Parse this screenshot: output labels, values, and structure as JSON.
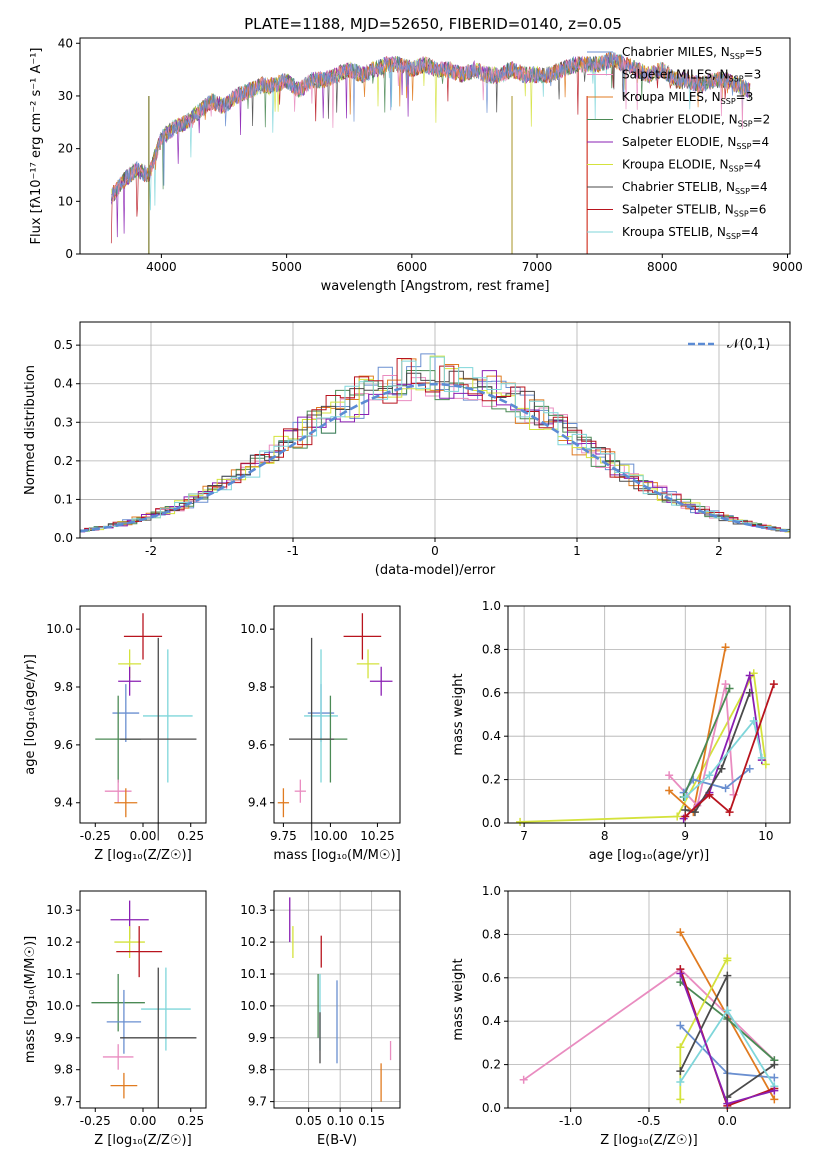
{
  "title": "PLATE=1188, MJD=52650, FIBERID=0140, z=0.05",
  "colors": {
    "Chabrier MILES": "#6a8fd0",
    "Salpeter MILES": "#e98cc0",
    "Kroupa MILES": "#e07b20",
    "Chabrier ELODIE": "#4b8a55",
    "Salpeter ELODIE": "#8a1fb3",
    "Kroupa ELODIE": "#d4e23c",
    "Chabrier STELIB": "#4a4a4a",
    "Salpeter STELIB": "#b8141e",
    "Kroupa STELIB": "#7fd6da"
  },
  "chart_data": [
    {
      "id": "spectrum",
      "type": "line",
      "xlabel": "wavelength [Angstrom, rest frame]",
      "ylabel": "Flux [fλ10⁻¹⁷ erg cm⁻² s⁻¹ A⁻¹]",
      "xlim": [
        3350,
        9020
      ],
      "ylim": [
        0,
        41
      ],
      "xticks": [
        4000,
        5000,
        6000,
        7000,
        8000,
        9000
      ],
      "yticks": [
        0,
        10,
        20,
        30,
        40
      ],
      "legend": "upper right",
      "grid": false,
      "x": [
        3600,
        3700,
        3800,
        3900,
        4000,
        4100,
        4200,
        4300,
        4400,
        4500,
        4600,
        4700,
        4800,
        4900,
        5000,
        5100,
        5200,
        5300,
        5400,
        5500,
        5600,
        5700,
        5800,
        5900,
        6000,
        6100,
        6200,
        6300,
        6400,
        6500,
        6600,
        6700,
        6800,
        6900,
        7000,
        7100,
        7200,
        7300,
        7400,
        7500,
        7600,
        7700,
        7800,
        7900,
        8000,
        8100,
        8200,
        8300,
        8400,
        8500,
        8600,
        8700
      ],
      "y": [
        11,
        14,
        16,
        15,
        22,
        24,
        25,
        27,
        29,
        28,
        30,
        31,
        32,
        32,
        33,
        31,
        33,
        33,
        34,
        35,
        34,
        35,
        36,
        36,
        35,
        36,
        35,
        35,
        34,
        35,
        34,
        34,
        35,
        34,
        34,
        34,
        35,
        36,
        36,
        36,
        37,
        36,
        35,
        34,
        35,
        33,
        33,
        32,
        33,
        33,
        32,
        31
      ],
      "series": [
        {
          "name": "Chabrier MILES, N_SSP=5"
        },
        {
          "name": "Salpeter MILES, N_SSP=3"
        },
        {
          "name": "Kroupa MILES, N_SSP=3"
        },
        {
          "name": "Chabrier ELODIE, N_SSP=2"
        },
        {
          "name": "Salpeter ELODIE, N_SSP=4"
        },
        {
          "name": "Kroupa ELODIE, N_SSP=4"
        },
        {
          "name": "Chabrier STELIB, N_SSP=4"
        },
        {
          "name": "Salpeter STELIB, N_SSP=6"
        },
        {
          "name": "Kroupa STELIB, N_SSP=4"
        }
      ]
    },
    {
      "id": "residuals",
      "type": "line",
      "xlabel": "(data-model)/error",
      "ylabel": "Normed distribution",
      "xlim": [
        -2.5,
        2.5
      ],
      "ylim": [
        0,
        0.56
      ],
      "xticks": [
        -2,
        -1,
        0,
        1,
        2
      ],
      "yticks": [
        0.0,
        0.1,
        0.2,
        0.3,
        0.4,
        0.5
      ],
      "grid": true,
      "legend": "upper right",
      "reference": {
        "name": "𝒩(0,1)",
        "mean": 0,
        "sigma": 1
      }
    },
    {
      "id": "age-vs-Z",
      "type": "scatter",
      "xlabel": "Z [log₁₀(Z/Z☉)]",
      "ylabel": "age  [log₁₀(age/yr)]",
      "xlim": [
        -0.33,
        0.33
      ],
      "ylim": [
        9.33,
        10.08
      ],
      "xticks": [
        -0.25,
        0.0,
        0.25
      ],
      "yticks": [
        9.4,
        9.6,
        9.8,
        10.0
      ],
      "points": [
        {
          "series": "Salpeter STELIB",
          "x": 0.0,
          "y": 9.975,
          "xerr": 0.1,
          "yerr": 0.08
        },
        {
          "series": "Kroupa ELODIE",
          "x": -0.07,
          "y": 9.88,
          "xerr": 0.06,
          "yerr": 0.05
        },
        {
          "series": "Salpeter ELODIE",
          "x": -0.07,
          "y": 9.82,
          "xerr": 0.06,
          "yerr": 0.05
        },
        {
          "series": "Chabrier MILES",
          "x": -0.09,
          "y": 9.71,
          "xerr": 0.07,
          "yerr": 0.1
        },
        {
          "series": "Kroupa STELIB",
          "x": 0.13,
          "y": 9.7,
          "xerr": 0.13,
          "yerr": 0.23
        },
        {
          "series": "Chabrier ELODIE",
          "x": -0.13,
          "y": 9.62,
          "xerr": 0.12,
          "yerr": 0.15
        },
        {
          "series": "Chabrier STELIB",
          "x": 0.08,
          "y": 9.62,
          "xerr": 0.2,
          "yerr": 0.35
        },
        {
          "series": "Salpeter MILES",
          "x": -0.13,
          "y": 9.44,
          "xerr": 0.07,
          "yerr": 0.04
        },
        {
          "series": "Kroupa MILES",
          "x": -0.09,
          "y": 9.4,
          "xerr": 0.06,
          "yerr": 0.05
        }
      ]
    },
    {
      "id": "age-vs-mass",
      "type": "scatter",
      "xlabel": "mass [log₁₀(M/M☉)]",
      "ylabel": "",
      "xlim": [
        9.7,
        10.37
      ],
      "ylim": [
        9.33,
        10.08
      ],
      "xticks": [
        9.75,
        10.0,
        10.25
      ],
      "yticks": [
        9.4,
        9.6,
        9.8,
        10.0
      ],
      "points": [
        {
          "series": "Salpeter STELIB",
          "x": 10.17,
          "y": 9.975,
          "xerr": 0.1,
          "yerr": 0.08
        },
        {
          "series": "Kroupa ELODIE",
          "x": 10.2,
          "y": 9.88,
          "xerr": 0.06,
          "yerr": 0.05
        },
        {
          "series": "Salpeter ELODIE",
          "x": 10.27,
          "y": 9.82,
          "xerr": 0.06,
          "yerr": 0.05
        },
        {
          "series": "Chabrier MILES",
          "x": 9.95,
          "y": 9.71,
          "xerr": 0.07,
          "yerr": 0.1
        },
        {
          "series": "Kroupa STELIB",
          "x": 9.95,
          "y": 9.7,
          "xerr": 0.09,
          "yerr": 0.23
        },
        {
          "series": "Chabrier ELODIE",
          "x": 10.0,
          "y": 9.62,
          "xerr": 0.09,
          "yerr": 0.15
        },
        {
          "series": "Chabrier STELIB",
          "x": 9.9,
          "y": 9.62,
          "xerr": 0.12,
          "yerr": 0.35
        },
        {
          "series": "Salpeter MILES",
          "x": 9.84,
          "y": 9.44,
          "xerr": 0.03,
          "yerr": 0.04
        },
        {
          "series": "Kroupa MILES",
          "x": 9.75,
          "y": 9.4,
          "xerr": 0.03,
          "yerr": 0.05
        }
      ]
    },
    {
      "id": "massweight-vs-age",
      "type": "line",
      "xlabel": "age  [log₁₀(age/yr)]",
      "ylabel": "mass weight",
      "xlim": [
        6.8,
        10.3
      ],
      "ylim": [
        0,
        1.0
      ],
      "xticks": [
        7,
        8,
        9,
        10
      ],
      "yticks": [
        0.0,
        0.2,
        0.4,
        0.6,
        0.8,
        1.0
      ],
      "grid": true,
      "series": [
        {
          "series": "Kroupa ELODIE",
          "x": [
            6.95,
            8.9,
            9.85,
            10.0
          ],
          "y": [
            0.005,
            0.03,
            0.69,
            0.27
          ]
        },
        {
          "series": "Kroupa MILES",
          "x": [
            8.8,
            9.1,
            9.5
          ],
          "y": [
            0.15,
            0.05,
            0.81
          ]
        },
        {
          "series": "Salpeter MILES",
          "x": [
            8.8,
            9.15,
            9.5,
            9.6
          ],
          "y": [
            0.22,
            0.08,
            0.64,
            0.13
          ]
        },
        {
          "series": "Salpeter ELODIE",
          "x": [
            8.98,
            9.3,
            9.8,
            9.95
          ],
          "y": [
            0.02,
            0.14,
            0.68,
            0.29
          ]
        },
        {
          "series": "Chabrier MILES",
          "x": [
            8.98,
            9.1,
            9.5,
            9.8
          ],
          "y": [
            0.14,
            0.2,
            0.16,
            0.25
          ]
        },
        {
          "series": "Chabrier ELODIE",
          "x": [
            8.98,
            9.55
          ],
          "y": [
            0.12,
            0.62
          ]
        },
        {
          "series": "Chabrier STELIB",
          "x": [
            9.0,
            9.12,
            9.45,
            9.8
          ],
          "y": [
            0.06,
            0.05,
            0.25,
            0.6
          ]
        },
        {
          "series": "Kroupa STELIB",
          "x": [
            9.0,
            9.3,
            9.85,
            9.95
          ],
          "y": [
            0.12,
            0.22,
            0.47,
            0.3
          ]
        },
        {
          "series": "Salpeter STELIB",
          "x": [
            9.0,
            9.3,
            9.55,
            10.1
          ],
          "y": [
            0.03,
            0.13,
            0.05,
            0.64
          ]
        }
      ]
    },
    {
      "id": "mass-vs-Z",
      "type": "scatter",
      "xlabel": "Z [log₁₀(Z/Z☉)]",
      "ylabel": "mass [log₁₀(M/M☉)]",
      "xlim": [
        -0.33,
        0.33
      ],
      "ylim": [
        9.68,
        10.36
      ],
      "xticks": [
        -0.25,
        0.0,
        0.25
      ],
      "yticks": [
        9.7,
        9.8,
        9.9,
        10.0,
        10.1,
        10.2,
        10.3
      ],
      "points": [
        {
          "series": "Salpeter ELODIE",
          "x": -0.07,
          "y": 10.27,
          "xerr": 0.1,
          "yerr": 0.06
        },
        {
          "series": "Kroupa ELODIE",
          "x": -0.07,
          "y": 10.2,
          "xerr": 0.08,
          "yerr": 0.05
        },
        {
          "series": "Salpeter STELIB",
          "x": -0.02,
          "y": 10.17,
          "xerr": 0.12,
          "yerr": 0.08
        },
        {
          "series": "Chabrier ELODIE",
          "x": -0.13,
          "y": 10.01,
          "xerr": 0.14,
          "yerr": 0.09
        },
        {
          "series": "Kroupa STELIB",
          "x": 0.12,
          "y": 9.99,
          "xerr": 0.13,
          "yerr": 0.13
        },
        {
          "series": "Chabrier MILES",
          "x": -0.1,
          "y": 9.95,
          "xerr": 0.09,
          "yerr": 0.1
        },
        {
          "series": "Chabrier STELIB",
          "x": 0.08,
          "y": 9.9,
          "xerr": 0.2,
          "yerr": 0.22
        },
        {
          "series": "Salpeter MILES",
          "x": -0.13,
          "y": 9.84,
          "xerr": 0.08,
          "yerr": 0.04
        },
        {
          "series": "Kroupa MILES",
          "x": -0.1,
          "y": 9.75,
          "xerr": 0.07,
          "yerr": 0.04
        }
      ]
    },
    {
      "id": "mass-vs-EBV",
      "type": "scatter",
      "xlabel": "E(B-V)",
      "ylabel": "",
      "xlim": [
        -0.005,
        0.195
      ],
      "ylim": [
        9.68,
        10.36
      ],
      "xticks": [
        0.05,
        0.1,
        0.15
      ],
      "yticks": [
        9.7,
        9.8,
        9.9,
        10.0,
        10.1,
        10.2,
        10.3
      ],
      "grid": true,
      "points": [
        {
          "series": "Salpeter ELODIE",
          "x": 0.02,
          "y": 10.27,
          "xerr": 0.0,
          "yerr": 0.07
        },
        {
          "series": "Kroupa ELODIE",
          "x": 0.025,
          "y": 10.2,
          "xerr": 0.0,
          "yerr": 0.05
        },
        {
          "series": "Salpeter STELIB",
          "x": 0.07,
          "y": 10.17,
          "xerr": 0.0,
          "yerr": 0.05
        },
        {
          "series": "Chabrier ELODIE",
          "x": 0.065,
          "y": 10.0,
          "xerr": 0.0,
          "yerr": 0.1
        },
        {
          "series": "Kroupa STELIB",
          "x": 0.068,
          "y": 9.98,
          "xerr": 0.0,
          "yerr": 0.12
        },
        {
          "series": "Chabrier MILES",
          "x": 0.095,
          "y": 9.95,
          "xerr": 0.0,
          "yerr": 0.13
        },
        {
          "series": "Chabrier STELIB",
          "x": 0.068,
          "y": 9.9,
          "xerr": 0.0,
          "yerr": 0.08
        },
        {
          "series": "Salpeter MILES",
          "x": 0.18,
          "y": 9.86,
          "xerr": 0.0,
          "yerr": 0.03
        },
        {
          "series": "Kroupa MILES",
          "x": 0.165,
          "y": 9.76,
          "xerr": 0.0,
          "yerr": 0.06
        }
      ]
    },
    {
      "id": "massweight-vs-Z",
      "type": "line",
      "xlabel": "Z [log₁₀(Z/Z☉)]",
      "ylabel": "mass weight",
      "xlim": [
        -1.4,
        0.4
      ],
      "ylim": [
        0,
        1.0
      ],
      "xticks": [
        -1.0,
        -0.5,
        0.0
      ],
      "yticks": [
        0.0,
        0.2,
        0.4,
        0.6,
        0.8,
        1.0
      ],
      "grid": true,
      "series": [
        {
          "series": "Salpeter MILES",
          "x": [
            -1.3,
            -0.3,
            0.3
          ],
          "y": [
            0.13,
            0.64,
            0.22
          ]
        },
        {
          "series": "Kroupa MILES",
          "x": [
            -0.3,
            0.3
          ],
          "y": [
            0.81,
            0.04
          ]
        },
        {
          "series": "Chabrier ELODIE",
          "x": [
            -0.3,
            0.0,
            0.3
          ],
          "y": [
            0.58,
            0.41,
            0.22
          ]
        },
        {
          "series": "Salpeter STELIB",
          "x": [
            -0.3,
            0.0,
            0.3
          ],
          "y": [
            0.64,
            0.01,
            0.09
          ]
        },
        {
          "series": "Kroupa ELODIE",
          "x": [
            -0.3,
            -0.3,
            0.0,
            0.0
          ],
          "y": [
            0.04,
            0.28,
            0.69,
            0.68
          ]
        },
        {
          "series": "Chabrier MILES",
          "x": [
            -0.3,
            0.0,
            0.3
          ],
          "y": [
            0.38,
            0.16,
            0.14
          ]
        },
        {
          "series": "Chabrier STELIB",
          "x": [
            -0.3,
            0.0,
            0.0,
            0.3
          ],
          "y": [
            0.17,
            0.61,
            0.05,
            0.2
          ]
        },
        {
          "series": "Kroupa STELIB",
          "x": [
            -0.3,
            0.0,
            0.3
          ],
          "y": [
            0.12,
            0.45,
            0.1
          ]
        },
        {
          "series": "Salpeter ELODIE",
          "x": [
            -0.3,
            0.0,
            0.3
          ],
          "y": [
            0.62,
            0.02,
            0.08
          ]
        }
      ]
    }
  ]
}
